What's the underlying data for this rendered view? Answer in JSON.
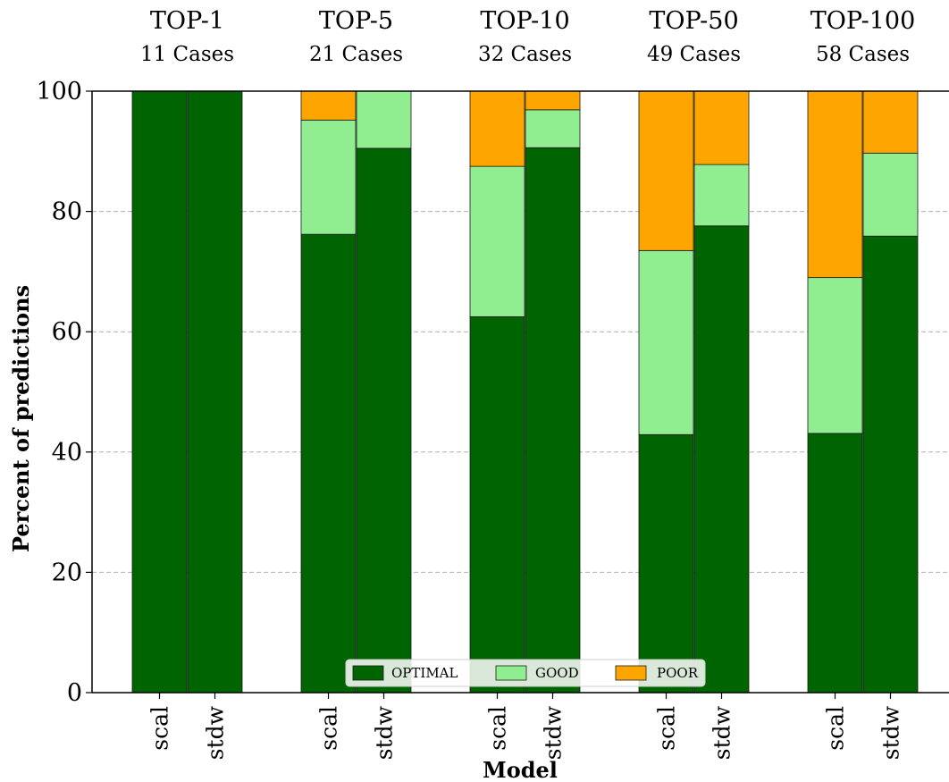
{
  "chart_data": {
    "type": "bar",
    "stacked": true,
    "xlabel": "Model",
    "ylabel": "Percent of predictions",
    "ylim": [
      0,
      100
    ],
    "yticks": [
      0,
      20,
      40,
      60,
      80,
      100
    ],
    "grid": "y-dashed",
    "legend_position": "bottom-center",
    "legend": [
      {
        "name": "OPTIMAL",
        "color": "#006400"
      },
      {
        "name": "GOOD",
        "color": "#90EE90"
      },
      {
        "name": "POOR",
        "color": "#FFA500"
      }
    ],
    "groups": [
      {
        "title": "TOP-1",
        "subtitle": "11 Cases",
        "bars": [
          {
            "label": "scal",
            "OPTIMAL": 100,
            "GOOD": 0,
            "POOR": 0
          },
          {
            "label": "stdw",
            "OPTIMAL": 100,
            "GOOD": 0,
            "POOR": 0
          }
        ]
      },
      {
        "title": "TOP-5",
        "subtitle": "21 Cases",
        "bars": [
          {
            "label": "scal",
            "OPTIMAL": 76.2,
            "GOOD": 19.0,
            "POOR": 4.8
          },
          {
            "label": "stdw",
            "OPTIMAL": 90.5,
            "GOOD": 9.5,
            "POOR": 0
          }
        ]
      },
      {
        "title": "TOP-10",
        "subtitle": "32 Cases",
        "bars": [
          {
            "label": "scal",
            "OPTIMAL": 62.5,
            "GOOD": 25.0,
            "POOR": 12.5
          },
          {
            "label": "stdw",
            "OPTIMAL": 90.6,
            "GOOD": 6.3,
            "POOR": 3.1
          }
        ]
      },
      {
        "title": "TOP-50",
        "subtitle": "49 Cases",
        "bars": [
          {
            "label": "scal",
            "OPTIMAL": 42.9,
            "GOOD": 30.6,
            "POOR": 26.5
          },
          {
            "label": "stdw",
            "OPTIMAL": 77.6,
            "GOOD": 10.2,
            "POOR": 12.2
          }
        ]
      },
      {
        "title": "TOP-100",
        "subtitle": "58 Cases",
        "bars": [
          {
            "label": "scal",
            "OPTIMAL": 43.1,
            "GOOD": 25.9,
            "POOR": 31.0
          },
          {
            "label": "stdw",
            "OPTIMAL": 75.9,
            "GOOD": 13.8,
            "POOR": 10.3
          }
        ]
      }
    ]
  }
}
